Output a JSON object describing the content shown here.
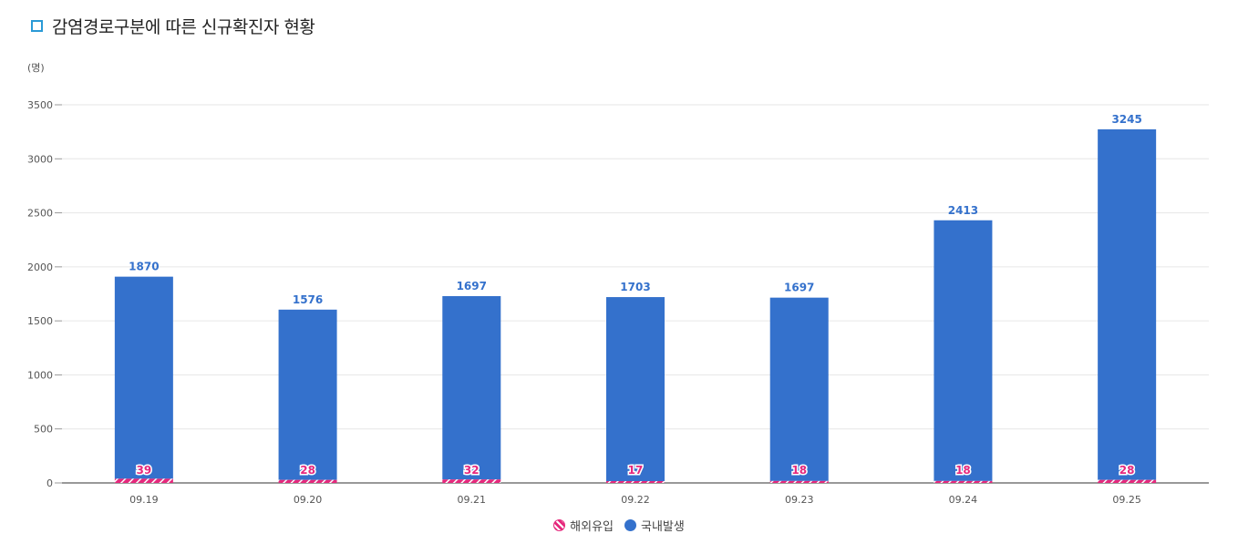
{
  "title": "감염경로구분에 따른 신규확진자 현황",
  "unit_label": "(명)",
  "colors": {
    "domestic": "#3471cc",
    "overseas": "#e5287c",
    "title_icon": "#2a9ad6"
  },
  "legend": {
    "overseas": "해외유입",
    "domestic": "국내발생"
  },
  "chart_data": {
    "type": "bar",
    "stacked": true,
    "categories": [
      "09.19",
      "09.20",
      "09.21",
      "09.22",
      "09.23",
      "09.24",
      "09.25"
    ],
    "series": [
      {
        "name": "해외유입",
        "values": [
          39,
          28,
          32,
          17,
          18,
          18,
          28
        ]
      },
      {
        "name": "국내발생",
        "values": [
          1870,
          1576,
          1697,
          1703,
          1697,
          2413,
          3245
        ]
      }
    ],
    "ylim": [
      0,
      3500
    ],
    "yticks": [
      0,
      500,
      1000,
      1500,
      2000,
      2500,
      3000,
      3500
    ],
    "ylabel": "(명)",
    "grid": true,
    "legend_position": "bottom"
  }
}
